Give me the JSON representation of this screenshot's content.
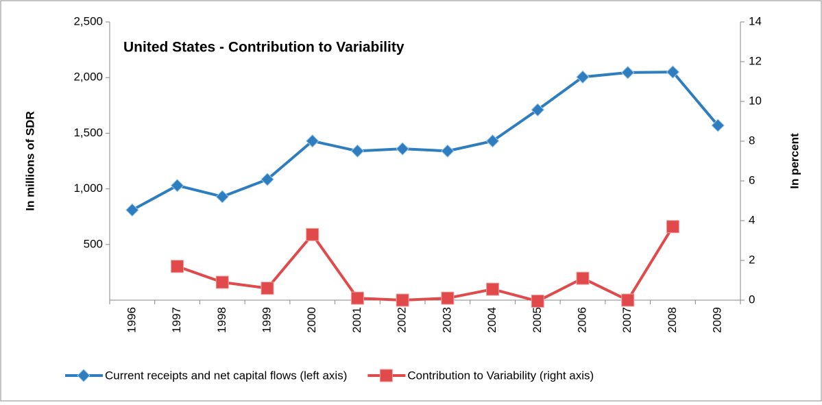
{
  "chart_data": {
    "type": "line",
    "title": "United States - Contribution to Variability",
    "y_label": "In millions of SDR",
    "y2_label": "In percent",
    "categories": [
      "1996",
      "1997",
      "1998",
      "1999",
      "2000",
      "2001",
      "2002",
      "2003",
      "2004",
      "2005",
      "2006",
      "2007",
      "2008",
      "2009"
    ],
    "series": [
      {
        "name": "Current receipts and net capital flows (left axis)",
        "color": "#2e7ebf",
        "marker": "diamond",
        "values": [
          810,
          1030,
          930,
          1085,
          1430,
          1340,
          1360,
          1340,
          1430,
          1710,
          2005,
          2045,
          2050,
          1570
        ]
      },
      {
        "name": "Contribution to Variability  (right axis)",
        "color": "#e04a4a",
        "marker": "square",
        "axis": "y2",
        "values": [
          null,
          1.7,
          0.9,
          0.6,
          3.3,
          0.1,
          0.0,
          0.1,
          0.55,
          -0.05,
          1.1,
          0.0,
          3.7,
          null
        ]
      }
    ],
    "ylim": [
      0,
      2500
    ],
    "yticks": [
      500,
      {
        "value": 1000,
        "label": "1,000"
      },
      {
        "value": 1500,
        "label": "1,500"
      },
      {
        "value": 2000,
        "label": "2,000"
      },
      {
        "value": 2500,
        "label": "2,500"
      }
    ],
    "y2lim": [
      0,
      14
    ],
    "y2ticks": [
      0,
      2,
      4,
      6,
      8,
      10,
      12,
      14
    ],
    "grid": false
  }
}
